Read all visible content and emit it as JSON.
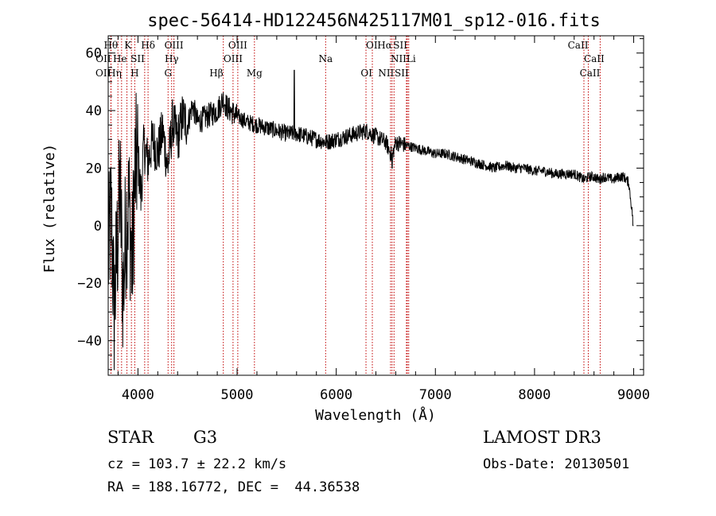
{
  "chart_data": {
    "type": "line",
    "title": "spec-56414-HD122456N425117M01_sp12-016.fits",
    "xlabel": "Wavelength (Å)",
    "ylabel": "Flux (relative)",
    "xlim": [
      3700,
      9100
    ],
    "ylim": [
      -52,
      66
    ],
    "xticks": [
      4000,
      5000,
      6000,
      7000,
      8000,
      9000
    ],
    "yticks": [
      -40,
      -20,
      0,
      20,
      40,
      60
    ],
    "series": [
      {
        "name": "flux",
        "x": [
          3700,
          3730,
          3760,
          3790,
          3820,
          3850,
          3880,
          3910,
          3940,
          3970,
          4000,
          4030,
          4060,
          4100,
          4150,
          4200,
          4250,
          4300,
          4350,
          4400,
          4450,
          4500,
          4550,
          4600,
          4700,
          4800,
          4860,
          4900,
          5000,
          5100,
          5200,
          5300,
          5400,
          5500,
          5600,
          5700,
          5800,
          5900,
          6000,
          6100,
          6200,
          6300,
          6400,
          6500,
          6563,
          6600,
          6700,
          6800,
          6900,
          7000,
          7100,
          7200,
          7300,
          7400,
          7500,
          7600,
          7700,
          7800,
          7900,
          8000,
          8100,
          8200,
          8300,
          8400,
          8500,
          8550,
          8600,
          8650,
          8700,
          8800,
          8850,
          8900,
          8950,
          9000
        ],
        "values": [
          -12,
          5,
          -30,
          -8,
          14,
          -25,
          2,
          8,
          -15,
          18,
          24,
          10,
          28,
          22,
          30,
          25,
          33,
          20,
          36,
          30,
          38,
          35,
          42,
          36,
          38,
          40,
          44,
          41,
          38,
          36,
          35,
          34,
          33,
          32,
          32,
          31,
          30,
          29,
          30,
          31,
          32,
          33,
          31,
          29,
          24,
          29,
          28,
          27,
          26,
          25,
          25,
          24,
          23,
          22,
          21,
          20,
          21,
          20,
          20,
          19,
          19,
          18,
          18,
          18,
          16,
          17,
          17,
          16,
          17,
          16,
          17,
          17,
          15,
          0
        ]
      }
    ],
    "line_labels": [
      {
        "label": "OII",
        "wavelength": 3727,
        "row": 2,
        "anchor": "end"
      },
      {
        "label": "OII",
        "wavelength": 3729,
        "row": 1,
        "anchor": "end"
      },
      {
        "label": "Hθ",
        "wavelength": 3798,
        "row": 0,
        "anchor": "end"
      },
      {
        "label": "Hη",
        "wavelength": 3835,
        "row": 2,
        "anchor": "end"
      },
      {
        "label": "He",
        "wavelength": 3889,
        "row": 1,
        "anchor": "end"
      },
      {
        "label": "K",
        "wavelength": 3934,
        "row": 0,
        "anchor": "end"
      },
      {
        "label": "SII",
        "wavelength": 4068,
        "row": 1,
        "anchor": "end"
      },
      {
        "label": "H",
        "wavelength": 3968,
        "row": 2,
        "anchor": "middle"
      },
      {
        "label": "Hδ",
        "wavelength": 4102,
        "row": 0,
        "anchor": "middle"
      },
      {
        "label": "OIII",
        "wavelength": 4363,
        "row": 0,
        "anchor": "middle"
      },
      {
        "label": "Hγ",
        "wavelength": 4340,
        "row": 1,
        "anchor": "middle"
      },
      {
        "label": "G",
        "wavelength": 4304,
        "row": 2,
        "anchor": "middle"
      },
      {
        "label": "Hβ",
        "wavelength": 4861,
        "row": 2,
        "anchor": "end"
      },
      {
        "label": "OIII",
        "wavelength": 5007,
        "row": 0,
        "anchor": "middle"
      },
      {
        "label": "OIII",
        "wavelength": 4959,
        "row": 1,
        "anchor": "middle"
      },
      {
        "label": "Mg",
        "wavelength": 5175,
        "row": 2,
        "anchor": "middle"
      },
      {
        "label": "Na",
        "wavelength": 5893,
        "row": 1,
        "anchor": "middle"
      },
      {
        "label": "OI",
        "wavelength": 6300,
        "row": 0,
        "anchor": "start"
      },
      {
        "label": "OI",
        "wavelength": 6364,
        "row": 2,
        "anchor": "end"
      },
      {
        "label": "Hα",
        "wavelength": 6563,
        "row": 0,
        "anchor": "end"
      },
      {
        "label": "NII",
        "wavelength": 6548,
        "row": 1,
        "anchor": "start"
      },
      {
        "label": "NII",
        "wavelength": 6583,
        "row": 2,
        "anchor": "end"
      },
      {
        "label": "SII",
        "wavelength": 6717,
        "row": 0,
        "anchor": "end"
      },
      {
        "label": "Li",
        "wavelength": 6708,
        "row": 1,
        "anchor": "start"
      },
      {
        "label": "SII",
        "wavelength": 6731,
        "row": 2,
        "anchor": "end"
      },
      {
        "label": "CaII",
        "wavelength": 8542,
        "row": 0,
        "anchor": "end"
      },
      {
        "label": "CaII",
        "wavelength": 8498,
        "row": 1,
        "anchor": "start"
      },
      {
        "label": "CaII",
        "wavelength": 8662,
        "row": 2,
        "anchor": "end"
      }
    ],
    "line_color": "#c00000"
  },
  "footer": {
    "object_class": "STAR",
    "subclass": "G3",
    "survey": "LAMOST DR3",
    "cz": "cz = 103.7 ± 22.2 km/s",
    "obs_date": "Obs-Date: 20130501",
    "coords": "RA = 188.16772, DEC =  44.36538"
  }
}
